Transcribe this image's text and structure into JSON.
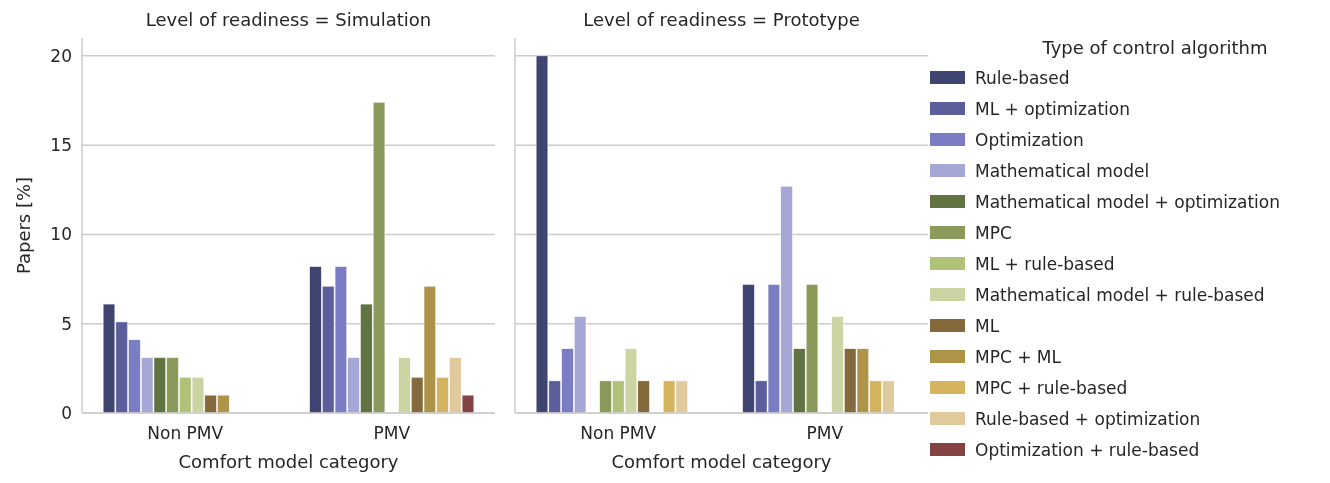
{
  "chart_data": [
    {
      "type": "bar",
      "title": "Level of readiness = Simulation",
      "xlabel": "Comfort model category",
      "ylabel": "Papers [%]",
      "categories": [
        "Non PMV",
        "PMV"
      ],
      "ylim": [
        0,
        21
      ],
      "yticks": [
        0,
        5,
        10,
        15,
        20
      ],
      "grid": "y",
      "legend": false,
      "series": [
        {
          "color": "#404470",
          "values": [
            6.1,
            8.2
          ]
        },
        {
          "color": "#5b5e9a",
          "values": [
            5.1,
            7.1
          ]
        },
        {
          "color": "#7a7dc4",
          "values": [
            4.1,
            8.2
          ]
        },
        {
          "color": "#a5a8d6",
          "values": [
            3.1,
            3.1
          ]
        },
        {
          "color": "#627342",
          "values": [
            3.1,
            6.1
          ]
        },
        {
          "color": "#8a9a5b",
          "values": [
            3.1,
            17.4
          ]
        },
        {
          "color": "#b0c277",
          "values": [
            2.0,
            null
          ]
        },
        {
          "color": "#cdd4a4",
          "values": [
            2.0,
            3.1
          ]
        },
        {
          "color": "#84693c",
          "values": [
            1.0,
            2.0
          ]
        },
        {
          "color": "#ae9448",
          "values": [
            1.0,
            7.1
          ]
        },
        {
          "color": "#d6b35f",
          "values": [
            null,
            2.0
          ]
        },
        {
          "color": "#e0c99d",
          "values": [
            null,
            3.1
          ]
        },
        {
          "color": "#844242",
          "values": [
            null,
            1.0
          ]
        }
      ]
    },
    {
      "type": "bar",
      "title": "Level of readiness = Prototype",
      "xlabel": "Comfort model category",
      "legend_title": "Type of control algorithm",
      "categories": [
        "Non PMV",
        "PMV"
      ],
      "ylim": [
        0,
        21
      ],
      "yticks": [
        0,
        5,
        10,
        15,
        20
      ],
      "grid": "y",
      "legend": "right",
      "tick_labels": "x",
      "series": [
        {
          "name": "Rule-based",
          "color": "#404470",
          "values": [
            20.0,
            7.2
          ]
        },
        {
          "name": "ML + optimization",
          "color": "#5b5e9a",
          "values": [
            1.8,
            1.8
          ]
        },
        {
          "name": "Optimization",
          "color": "#7a7dc4",
          "values": [
            3.6,
            7.2
          ]
        },
        {
          "name": "Mathematical model",
          "color": "#a5a8d6",
          "values": [
            5.4,
            12.7
          ]
        },
        {
          "name": "Mathematical model + optimization",
          "color": "#627342",
          "values": [
            null,
            3.6
          ]
        },
        {
          "name": "MPC",
          "color": "#8a9a5b",
          "values": [
            1.8,
            7.2
          ]
        },
        {
          "name": "ML + rule-based",
          "color": "#b0c277",
          "values": [
            1.8,
            null
          ]
        },
        {
          "name": "Mathematical model + rule-based",
          "color": "#cdd4a4",
          "values": [
            3.6,
            5.4
          ]
        },
        {
          "name": "ML",
          "color": "#84693c",
          "values": [
            1.8,
            3.6
          ]
        },
        {
          "name": "MPC + ML",
          "color": "#ae9448",
          "values": [
            null,
            3.6
          ]
        },
        {
          "name": "MPC + rule-based",
          "color": "#d6b35f",
          "values": [
            1.8,
            1.8
          ]
        },
        {
          "name": "Rule-based + optimization",
          "color": "#e0c99d",
          "values": [
            1.8,
            1.8
          ]
        },
        {
          "name": "Optimization + rule-based",
          "color": "#844242",
          "values": [
            null,
            null
          ]
        }
      ]
    }
  ]
}
